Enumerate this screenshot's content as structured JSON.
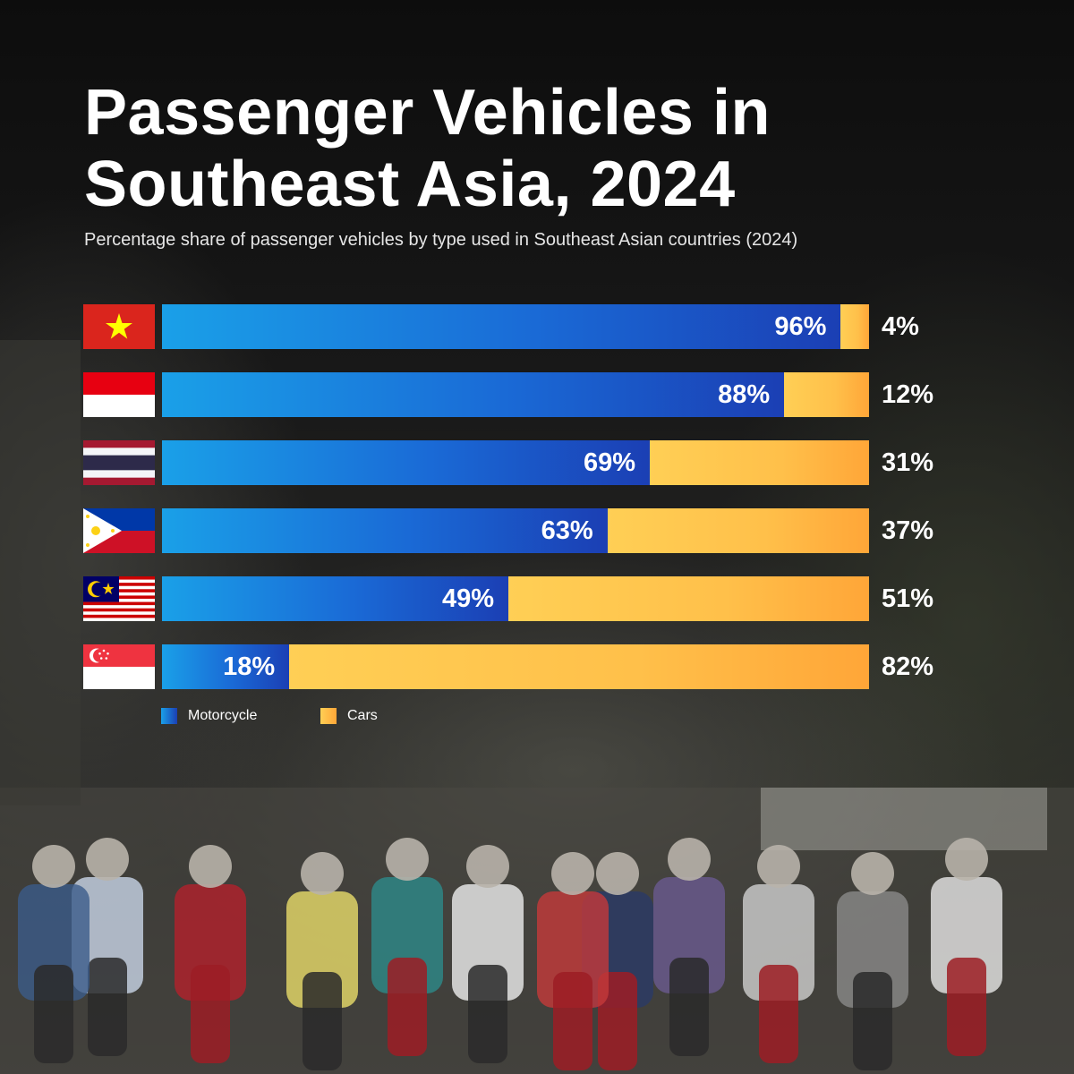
{
  "title": "Passenger Vehicles in Southeast Asia, 2024",
  "subtitle": "Percentage share of passenger vehicles by type used in Southeast Asian countries (2024)",
  "legend": [
    {
      "label": "Motorcycle",
      "color": "#1a6ad6"
    },
    {
      "label": "Cars",
      "color": "#ffbf4a"
    }
  ],
  "chart_data": {
    "type": "bar",
    "orientation": "horizontal",
    "stacked": true,
    "unit": "%",
    "categories": [
      "Vietnam flag",
      "Indonesia flag",
      "Thailand flag",
      "Philippines flag",
      "Malaysia flag",
      "Singapore flag"
    ],
    "series": [
      {
        "name": "Motorcycle",
        "values": [
          96,
          88,
          69,
          63,
          49,
          18
        ],
        "color": "#1a6ad6"
      },
      {
        "name": "Cars",
        "values": [
          4,
          12,
          31,
          37,
          51,
          82
        ],
        "color": "#ffbf4a"
      }
    ],
    "xlim": [
      0,
      100
    ],
    "grid": false,
    "legend_position": "bottom-left"
  }
}
